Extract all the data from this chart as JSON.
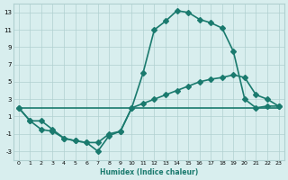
{
  "line1_x": [
    0,
    1,
    2,
    3,
    4,
    5,
    6,
    7,
    8,
    9,
    10,
    11,
    12,
    13,
    14,
    15,
    16,
    17,
    18,
    19,
    20,
    21,
    22,
    23
  ],
  "line1_y": [
    2,
    0.5,
    0.5,
    -0.5,
    -1.5,
    -1.8,
    -2.0,
    -2.0,
    -1.0,
    -0.7,
    2.0,
    6.0,
    11.0,
    12.0,
    13.2,
    13.0,
    12.2,
    11.8,
    11.2,
    8.5,
    3.0,
    2.0,
    2.2,
    2.2
  ],
  "line2_x": [
    0,
    23
  ],
  "line2_y": [
    2,
    2
  ],
  "line3_x": [
    0,
    1,
    2,
    3,
    4,
    5,
    6,
    7,
    8,
    9,
    10,
    11,
    12,
    13,
    14,
    15,
    16,
    17,
    18,
    19,
    20,
    21,
    22,
    23
  ],
  "line3_y": [
    2,
    0.5,
    -0.5,
    -0.7,
    -1.5,
    -1.8,
    -2.0,
    -3.0,
    -1.2,
    -0.7,
    2.0,
    2.5,
    3.0,
    3.5,
    4.0,
    4.5,
    5.0,
    5.3,
    5.5,
    5.8,
    5.5,
    3.5,
    3.0,
    2.2
  ],
  "line_color": "#1a7a6e",
  "bg_color": "#d8eeee",
  "grid_color": "#b0d0d0",
  "xlabel": "Humidex (Indice chaleur)",
  "xlim": [
    -0.5,
    23.5
  ],
  "ylim": [
    -4,
    14
  ],
  "yticks": [
    -3,
    -1,
    1,
    3,
    5,
    7,
    9,
    11,
    13
  ],
  "xticks": [
    0,
    1,
    2,
    3,
    4,
    5,
    6,
    7,
    8,
    9,
    10,
    11,
    12,
    13,
    14,
    15,
    16,
    17,
    18,
    19,
    20,
    21,
    22,
    23
  ],
  "xtick_labels": [
    "0",
    "1",
    "2",
    "3",
    "4",
    "5",
    "6",
    "7",
    "8",
    "9",
    "10",
    "11",
    "12",
    "13",
    "14",
    "15",
    "16",
    "17",
    "18",
    "19",
    "20",
    "21",
    "22",
    "23"
  ],
  "marker": "D",
  "markersize": 3,
  "linewidth": 1.2
}
